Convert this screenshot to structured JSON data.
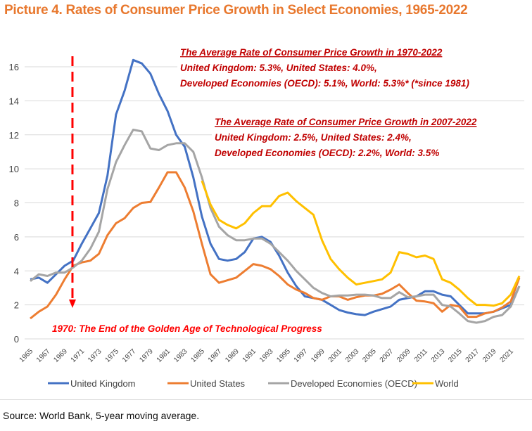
{
  "title": "Picture 4. Rates of Consumer Price Growth in Select Economies, 1965-2022",
  "source": "Source: World Bank, 5-year moving average.",
  "chart_data": {
    "type": "line",
    "title": "Picture 4. Rates of Consumer Price Growth in Select Economies, 1965-2022",
    "xlabel": "",
    "ylabel": "",
    "xlim": [
      1965,
      2022
    ],
    "ylim": [
      0,
      16
    ],
    "yticks": [
      0,
      2,
      4,
      6,
      8,
      10,
      12,
      14,
      16
    ],
    "xticks": [
      1965,
      1967,
      1969,
      1971,
      1973,
      1975,
      1977,
      1979,
      1981,
      1983,
      1985,
      1987,
      1989,
      1991,
      1993,
      1995,
      1997,
      1999,
      2001,
      2003,
      2005,
      2007,
      2009,
      2011,
      2013,
      2015,
      2017,
      2019,
      2021
    ],
    "grid": "horizontal",
    "legend_position": "bottom",
    "series": [
      {
        "name": "United Kingdom",
        "color": "#4472C4",
        "start": 1965,
        "values": [
          3.5,
          3.6,
          3.3,
          3.8,
          4.3,
          4.6,
          5.6,
          6.5,
          7.4,
          9.6,
          13.2,
          14.6,
          16.4,
          16.2,
          15.6,
          14.4,
          13.4,
          12.0,
          11.3,
          9.5,
          7.2,
          5.6,
          4.7,
          4.6,
          4.7,
          5.1,
          5.9,
          6.0,
          5.7,
          4.9,
          3.9,
          3.1,
          2.5,
          2.4,
          2.3,
          2.0,
          1.7,
          1.55,
          1.45,
          1.4,
          1.6,
          1.75,
          1.9,
          2.3,
          2.4,
          2.5,
          2.8,
          2.8,
          2.6,
          2.5,
          2.0,
          1.5,
          1.5,
          1.5,
          1.6,
          1.8,
          2.0,
          3.1
        ]
      },
      {
        "name": "United States",
        "color": "#ED7D31",
        "start": 1965,
        "values": [
          1.2,
          1.6,
          1.9,
          2.6,
          3.5,
          4.3,
          4.5,
          4.6,
          5.0,
          6.1,
          6.8,
          7.1,
          7.7,
          8.0,
          8.05,
          8.9,
          9.8,
          9.8,
          8.9,
          7.5,
          5.6,
          3.8,
          3.3,
          3.45,
          3.6,
          4.0,
          4.4,
          4.3,
          4.1,
          3.7,
          3.2,
          2.9,
          2.7,
          2.4,
          2.3,
          2.5,
          2.5,
          2.3,
          2.45,
          2.55,
          2.55,
          2.65,
          2.9,
          3.2,
          2.7,
          2.25,
          2.2,
          2.1,
          1.6,
          2.0,
          1.9,
          1.3,
          1.3,
          1.5,
          1.6,
          1.85,
          2.2,
          3.6
        ]
      },
      {
        "name": "Developed Economies (OECD)",
        "color": "#A5A5A5",
        "start": 1965,
        "values": [
          3.4,
          3.8,
          3.7,
          3.9,
          3.9,
          4.2,
          4.6,
          5.3,
          6.3,
          8.8,
          10.4,
          11.4,
          12.3,
          12.2,
          11.2,
          11.1,
          11.4,
          11.5,
          11.5,
          11.0,
          9.5,
          7.7,
          6.6,
          6.1,
          5.8,
          5.8,
          5.9,
          5.9,
          5.6,
          5.1,
          4.6,
          4.0,
          3.5,
          3.0,
          2.7,
          2.5,
          2.55,
          2.55,
          2.6,
          2.6,
          2.55,
          2.4,
          2.4,
          2.75,
          2.45,
          2.5,
          2.6,
          2.6,
          2.0,
          1.9,
          1.5,
          1.05,
          0.95,
          1.05,
          1.3,
          1.4,
          1.9,
          3.1
        ]
      },
      {
        "name": "World",
        "color": "#FFC000",
        "start": 1985,
        "values": [
          9.3,
          7.9,
          7.0,
          6.7,
          6.5,
          6.8,
          7.4,
          7.8,
          7.8,
          8.4,
          8.6,
          8.1,
          7.7,
          7.3,
          5.8,
          4.7,
          4.1,
          3.6,
          3.2,
          3.3,
          3.4,
          3.5,
          3.9,
          5.1,
          5.0,
          4.8,
          4.9,
          4.7,
          3.5,
          3.3,
          2.9,
          2.4,
          2.0,
          2.0,
          1.95,
          2.1,
          2.6,
          3.7
        ]
      }
    ],
    "annotations": {
      "avg_1970": {
        "heading": "The Average Rate of Consumer Price Growth in 1970-2022",
        "line1": "United Kingdom:  5.3%, United States: 4.0%,",
        "line2": "Developed Economies (OECD): 5.1%, World: 5.3%* (*since 1981)"
      },
      "avg_2007": {
        "heading": "The Average Rate of Consumer Price Growth in 2007-2022",
        "line1": "United Kingdom:  2.5%, United States: 2.4%,",
        "line2": "Developed Economies (OECD): 2.2%, World: 3.5%"
      },
      "marker": {
        "year": 1970,
        "label": "1970: The End of the Golden Age of Technological Progress",
        "color": "#FF0000"
      },
      "text_color": "#C00000"
    }
  }
}
